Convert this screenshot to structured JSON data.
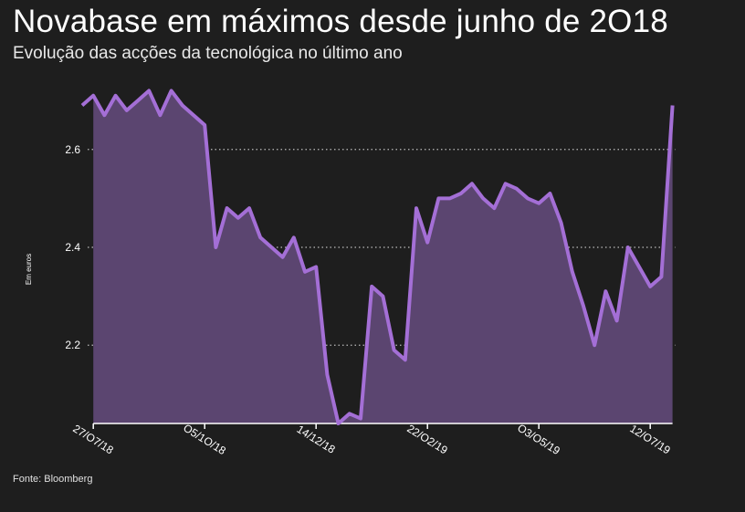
{
  "header": {
    "title": "Novabase em máximos desde junho de 2O18",
    "subtitle": "Evolução das acções da tecnológica no último ano"
  },
  "footer": {
    "source": "Fonte: Bloomberg"
  },
  "colors": {
    "background": "#1e1e1e",
    "line": "#a46fd6",
    "area": "#5b4570",
    "grid": "#bbbbbb",
    "axis": "#ffffff"
  },
  "chart_data": {
    "type": "area",
    "title": "Novabase em máximos desde junho de 2O18",
    "subtitle": "Evolução das acções da tecnológica no último ano",
    "xlabel": "",
    "ylabel": "Em euros",
    "ylim": [
      2.04,
      2.76
    ],
    "yticks": [
      2.2,
      2.4,
      2.6
    ],
    "ytick_labels": [
      "2.2",
      "2.4",
      "2.6"
    ],
    "grid": "horizontal-dotted",
    "xticks": [
      {
        "index": 1,
        "label": "27/O7/18"
      },
      {
        "index": 11,
        "label": "O5/1O/18"
      },
      {
        "index": 21,
        "label": "14/12/18"
      },
      {
        "index": 31,
        "label": "22/O2/19"
      },
      {
        "index": 41,
        "label": "O3/O5/19"
      },
      {
        "index": 51,
        "label": "12/O7/19"
      }
    ],
    "series": [
      {
        "name": "Novabase",
        "values": [
          2.69,
          2.71,
          2.67,
          2.71,
          2.68,
          2.7,
          2.72,
          2.67,
          2.72,
          2.69,
          2.67,
          2.65,
          2.4,
          2.48,
          2.46,
          2.48,
          2.42,
          2.4,
          2.38,
          2.42,
          2.35,
          2.36,
          2.14,
          2.04,
          2.06,
          2.05,
          2.32,
          2.3,
          2.19,
          2.17,
          2.48,
          2.41,
          2.5,
          2.5,
          2.51,
          2.53,
          2.5,
          2.48,
          2.53,
          2.52,
          2.5,
          2.49,
          2.51,
          2.45,
          2.35,
          2.28,
          2.2,
          2.31,
          2.25,
          2.4,
          2.36,
          2.32,
          2.34,
          2.69
        ]
      }
    ]
  }
}
